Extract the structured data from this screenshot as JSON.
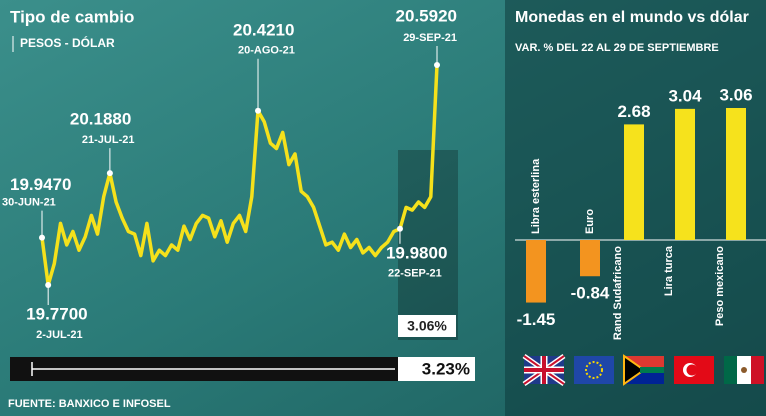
{
  "chart_data": [
    {
      "type": "line",
      "title": "Tipo de cambio",
      "subtitle": "PESOS - DÓLAR",
      "color": "#f5e11b",
      "values": [
        19.947,
        19.77,
        19.85,
        20.0,
        19.92,
        19.97,
        19.9,
        19.95,
        20.03,
        19.96,
        20.1,
        20.188,
        20.08,
        20.02,
        19.97,
        19.96,
        19.88,
        20.0,
        19.86,
        19.9,
        19.88,
        19.92,
        19.9,
        19.99,
        19.94,
        20.0,
        20.03,
        20.02,
        19.95,
        20.01,
        19.93,
        20.0,
        20.03,
        19.97,
        20.1,
        20.421,
        20.38,
        20.3,
        20.28,
        20.34,
        20.22,
        20.26,
        20.12,
        20.1,
        20.06,
        19.99,
        19.92,
        19.93,
        19.9,
        19.96,
        19.91,
        19.94,
        19.89,
        19.91,
        19.88,
        19.91,
        19.93,
        19.97,
        19.98,
        20.06,
        20.05,
        20.08,
        20.06,
        20.1,
        20.592
      ],
      "annotations": [
        {
          "value": 19.947,
          "label": "19.9470",
          "date": "30-JUN-21"
        },
        {
          "value": 19.77,
          "label": "19.7700",
          "date": "2-JUL-21"
        },
        {
          "value": 20.188,
          "label": "20.1880",
          "date": "21-JUL-21"
        },
        {
          "value": 20.421,
          "label": "20.4210",
          "date": "20-AGO-21"
        },
        {
          "value": 19.98,
          "label": "19.9800",
          "date": "22-SEP-21"
        },
        {
          "value": 20.592,
          "label": "20.5920",
          "date": "29-SEP-21"
        }
      ],
      "week_change": "3.06%",
      "period_change": "3.23%"
    },
    {
      "type": "bar",
      "title": "Monedas en el mundo vs dólar",
      "subtitle": "VAR. % DEL 22 AL 29 DE SEPTIEMBRE",
      "categories": [
        "Libra esterlina",
        "Euro",
        "Rand Sudafricano",
        "Lira turca",
        "Peso mexicano"
      ],
      "values": [
        -1.45,
        -0.84,
        2.68,
        3.04,
        3.06
      ],
      "colors": [
        "#f3941f",
        "#f3941f",
        "#f6e21c",
        "#f6e21c",
        "#f6e21c"
      ]
    }
  ],
  "source": "FUENTE: BANXICO E INFOSEL"
}
